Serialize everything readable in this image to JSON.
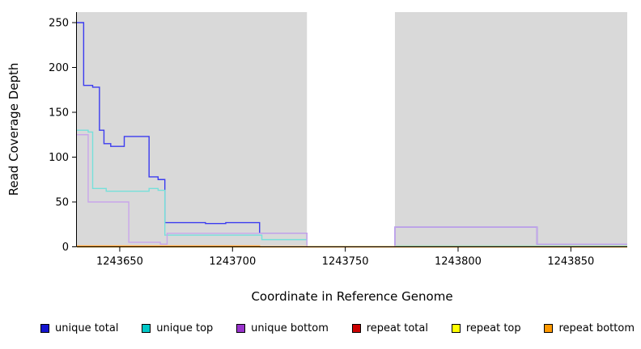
{
  "figure": {
    "background": "#ffffff",
    "panel_color": "#d9d9d9",
    "gap_color": "#ffffff",
    "axis_color": "#000000"
  },
  "chart_data": {
    "type": "line",
    "style": "step-after",
    "title": "",
    "xlabel": "Coordinate in Reference Genome",
    "ylabel": "Read Coverage Depth",
    "xlim": [
      1243631,
      1243875
    ],
    "ylim": [
      0,
      250
    ],
    "x_ticks": [
      "1243650",
      "1243700",
      "1243750",
      "1243800",
      "1243850"
    ],
    "y_ticks": [
      "0",
      "50",
      "100",
      "150",
      "200",
      "250"
    ],
    "grid": false,
    "legend_position": "bottom",
    "panel_background": "#d9d9d9",
    "gap_region": {
      "x_start": 1243733,
      "x_end": 1243772,
      "color": "#ffffff"
    },
    "series": [
      {
        "name": "unique total",
        "color": "#1414cf",
        "line_color": "#3b3bf0",
        "points": [
          [
            1243631,
            250
          ],
          [
            1243634,
            180
          ],
          [
            1243638,
            178
          ],
          [
            1243641,
            130
          ],
          [
            1243643,
            115
          ],
          [
            1243646,
            112
          ],
          [
            1243652,
            123
          ],
          [
            1243663,
            78
          ],
          [
            1243667,
            75
          ],
          [
            1243670,
            27
          ],
          [
            1243688,
            26
          ],
          [
            1243697,
            27
          ],
          [
            1243712,
            15
          ],
          [
            1243733,
            0
          ],
          [
            1243772,
            22
          ],
          [
            1243835,
            3
          ],
          [
            1243875,
            3
          ]
        ]
      },
      {
        "name": "unique top",
        "color": "#00c8c8",
        "line_color": "#76e0da",
        "points": [
          [
            1243631,
            130
          ],
          [
            1243636,
            128
          ],
          [
            1243638,
            65
          ],
          [
            1243644,
            62
          ],
          [
            1243663,
            65
          ],
          [
            1243667,
            63
          ],
          [
            1243670,
            13
          ],
          [
            1243713,
            8
          ],
          [
            1243733,
            0
          ],
          [
            1243772,
            1
          ],
          [
            1243875,
            1
          ]
        ]
      },
      {
        "name": "unique bottom",
        "color": "#9933cc",
        "line_color": "#c9a6ea",
        "points": [
          [
            1243631,
            125
          ],
          [
            1243636,
            50
          ],
          [
            1243654,
            5
          ],
          [
            1243668,
            3
          ],
          [
            1243671,
            15
          ],
          [
            1243733,
            0
          ],
          [
            1243772,
            22
          ],
          [
            1243835,
            3
          ],
          [
            1243875,
            3
          ]
        ]
      },
      {
        "name": "repeat total",
        "color": "#cc0000",
        "line_color": "#d43030",
        "points": [
          [
            1243631,
            0
          ],
          [
            1243875,
            0
          ]
        ]
      },
      {
        "name": "repeat top",
        "color": "#ffff00",
        "line_color": "#f2f240",
        "points": [
          [
            1243631,
            0
          ],
          [
            1243875,
            0
          ]
        ]
      },
      {
        "name": "repeat bottom",
        "color": "#ff9900",
        "line_color": "#ffa028",
        "points": [
          [
            1243631,
            1
          ],
          [
            1243712,
            0
          ],
          [
            1243875,
            0
          ]
        ]
      }
    ]
  }
}
